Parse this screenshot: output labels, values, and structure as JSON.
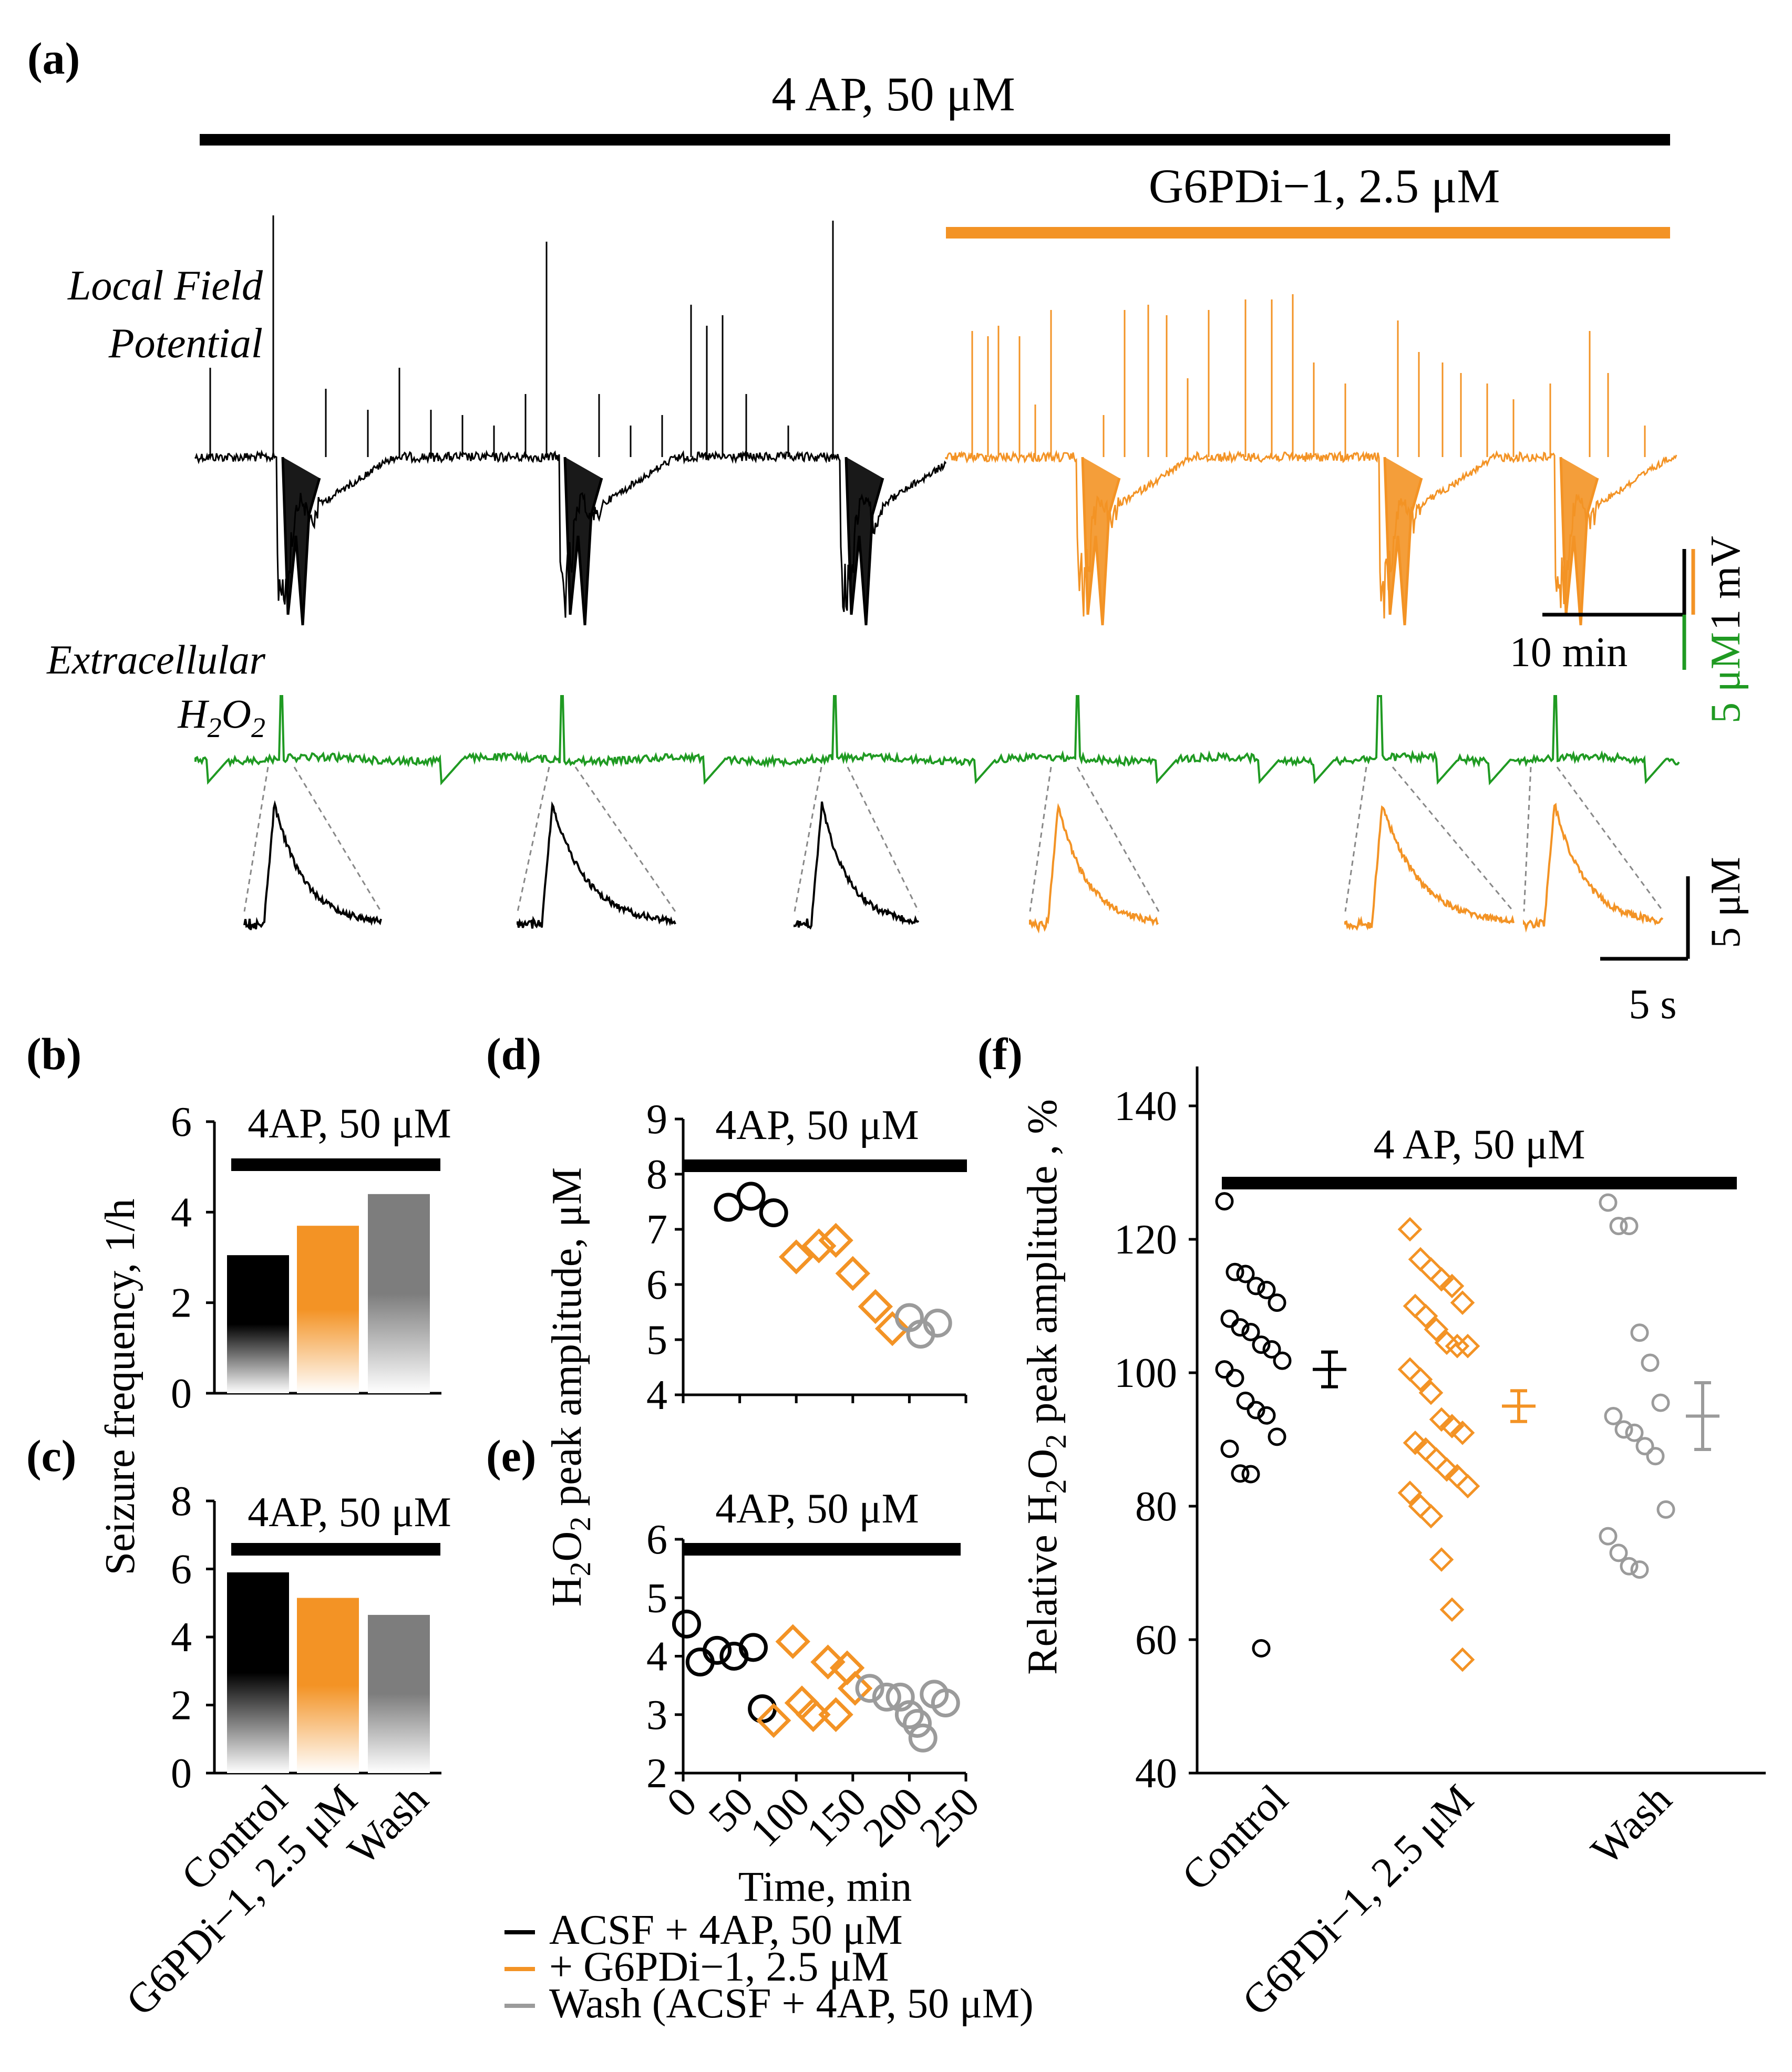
{
  "colors": {
    "control": "#000000",
    "drug": "#f39325",
    "wash": "#9b9b9b",
    "h2o2_trace": "#1f9a22"
  },
  "panel_a": {
    "label": "(a)",
    "bar_4ap": "4 AP, 50 μM",
    "bar_drug": "G6PDi−1, 2.5 μM",
    "lfp_label_1": "Local Field",
    "lfp_label_2": "Potential",
    "h2o2_label_1": "Extracellular",
    "h2o2_label_2": "H",
    "h2o2_label_sub": "2",
    "h2o2_label_3": "O",
    "h2o2_label_sub2": "2",
    "scale_time": "10 min",
    "scale_mv": "1 mV",
    "scale_um": "5 μM",
    "inset_scale_um": "5 μM",
    "inset_scale_s": "5 s"
  },
  "panel_b": {
    "label": "(b)",
    "bar_text": "4AP, 50 μM",
    "ylabel": "Seizure frequency, 1/h"
  },
  "panel_c": {
    "label": "(c)",
    "bar_text": "4AP, 50 μM"
  },
  "bc_categories": [
    "Control",
    "G6PDi−1, 2.5 μM",
    "Wash"
  ],
  "panel_d": {
    "label": "(d)",
    "bar_text": "4AP, 50 μM",
    "ylabel_pre": "H",
    "ylabel_sub": "2",
    "ylabel_mid": "O",
    "ylabel_sub2": "2",
    "ylabel_post": " peak amplitude, μM"
  },
  "panel_e": {
    "label": "(e)",
    "bar_text": "4AP, 50 μM",
    "xlabel": "Time, min"
  },
  "panel_f": {
    "label": "(f)",
    "bar_text": "4 AP, 50 μM",
    "ylabel_pre": "Relative H",
    "ylabel_sub": "2",
    "ylabel_mid": "O",
    "ylabel_sub2": "2",
    "ylabel_post": " peak amplitude , %"
  },
  "legend": [
    {
      "label": "ACSF + 4AP, 50 μM",
      "color": "#000000"
    },
    {
      "label": "+ G6PDi−1, 2.5 μM",
      "color": "#f39325"
    },
    {
      "label": "Wash (ACSF + 4AP, 50 μM)",
      "color": "#9b9b9b"
    }
  ],
  "chart_data": [
    {
      "panel": "b",
      "type": "bar",
      "categories": [
        "Control",
        "G6PDi−1, 2.5 μM",
        "Wash"
      ],
      "values": [
        3.05,
        3.7,
        4.4
      ],
      "ylim": [
        0,
        6
      ],
      "yticks": [
        0,
        2,
        4,
        6
      ],
      "ylabel": "Seizure frequency, 1/h"
    },
    {
      "panel": "c",
      "type": "bar",
      "categories": [
        "Control",
        "G6PDi−1, 2.5 μM",
        "Wash"
      ],
      "values": [
        5.9,
        5.15,
        4.65
      ],
      "ylim": [
        0,
        8
      ],
      "yticks": [
        0,
        2,
        4,
        6,
        8
      ]
    },
    {
      "panel": "d",
      "type": "scatter",
      "ylim": [
        4,
        9
      ],
      "xlim": [
        0,
        250
      ],
      "yticks": [
        4,
        5,
        6,
        7,
        8,
        9
      ],
      "series": [
        {
          "points": [
            [
              40,
              7.4
            ],
            [
              60,
              7.6
            ],
            [
              80,
              7.3
            ]
          ]
        },
        {
          "points": [
            [
              100,
              6.5
            ],
            [
              120,
              6.7
            ],
            [
              135,
              6.8
            ],
            [
              150,
              6.2
            ],
            [
              170,
              5.6
            ],
            [
              185,
              5.2
            ]
          ]
        },
        {
          "points": [
            [
              200,
              5.4
            ],
            [
              210,
              5.1
            ],
            [
              225,
              5.3
            ]
          ]
        }
      ]
    },
    {
      "panel": "e",
      "type": "scatter",
      "xlabel": "Time, min",
      "ylim": [
        2,
        6
      ],
      "xlim": [
        0,
        250
      ],
      "yticks": [
        2,
        3,
        4,
        5,
        6
      ],
      "xticks": [
        0,
        50,
        100,
        150,
        200,
        250
      ],
      "series": [
        {
          "points": [
            [
              3,
              4.55
            ],
            [
              15,
              3.9
            ],
            [
              30,
              4.1
            ],
            [
              45,
              4.0
            ],
            [
              62,
              4.15
            ],
            [
              70,
              3.1
            ]
          ]
        },
        {
          "points": [
            [
              80,
              2.9
            ],
            [
              97,
              4.25
            ],
            [
              105,
              3.2
            ],
            [
              115,
              3.0
            ],
            [
              128,
              3.9
            ],
            [
              135,
              3.0
            ],
            [
              145,
              3.8
            ],
            [
              152,
              3.45
            ]
          ]
        },
        {
          "points": [
            [
              165,
              3.45
            ],
            [
              180,
              3.3
            ],
            [
              192,
              3.3
            ],
            [
              200,
              3.0
            ],
            [
              207,
              2.85
            ],
            [
              212,
              2.6
            ],
            [
              222,
              3.35
            ],
            [
              232,
              3.2
            ]
          ]
        }
      ]
    },
    {
      "panel": "f",
      "type": "scatter",
      "ylabel": "Relative H2O2 peak amplitude , %",
      "ylim": [
        40,
        140
      ],
      "yticks": [
        40,
        60,
        80,
        100,
        120,
        140
      ],
      "categories": [
        "Control",
        "G6PDi−1, 2.5 μM",
        "Wash"
      ],
      "groups": [
        {
          "values": [
            125.7,
            115.1,
            114.8,
            113.0,
            112.4,
            110.5,
            108.1,
            106.8,
            106.1,
            104.2,
            103.5,
            101.8,
            100.5,
            99.2,
            95.8,
            94.4,
            93.6,
            90.4,
            88.6,
            84.9,
            84.8,
            58.7
          ],
          "mean": 100.5,
          "err": 2.6
        },
        {
          "values": [
            121.5,
            117.0,
            115.5,
            114.0,
            113.0,
            110.5,
            110.0,
            108.5,
            106.5,
            104.5,
            104.0,
            104.0,
            100.5,
            99.0,
            97.0,
            93.0,
            92.0,
            91.0,
            89.5,
            88.5,
            87.0,
            85.5,
            84.5,
            83.0,
            82.0,
            80.0,
            78.5,
            72.0,
            64.5,
            57.0
          ],
          "mean": 95.0,
          "err": 2.3
        },
        {
          "values": [
            125.5,
            122.0,
            122.0,
            106.0,
            101.5,
            95.5,
            93.5,
            91.5,
            91.0,
            89.0,
            87.5,
            79.5,
            75.5,
            73.0,
            71.0,
            70.5
          ],
          "mean": 93.5,
          "err": 5.0
        }
      ]
    }
  ]
}
